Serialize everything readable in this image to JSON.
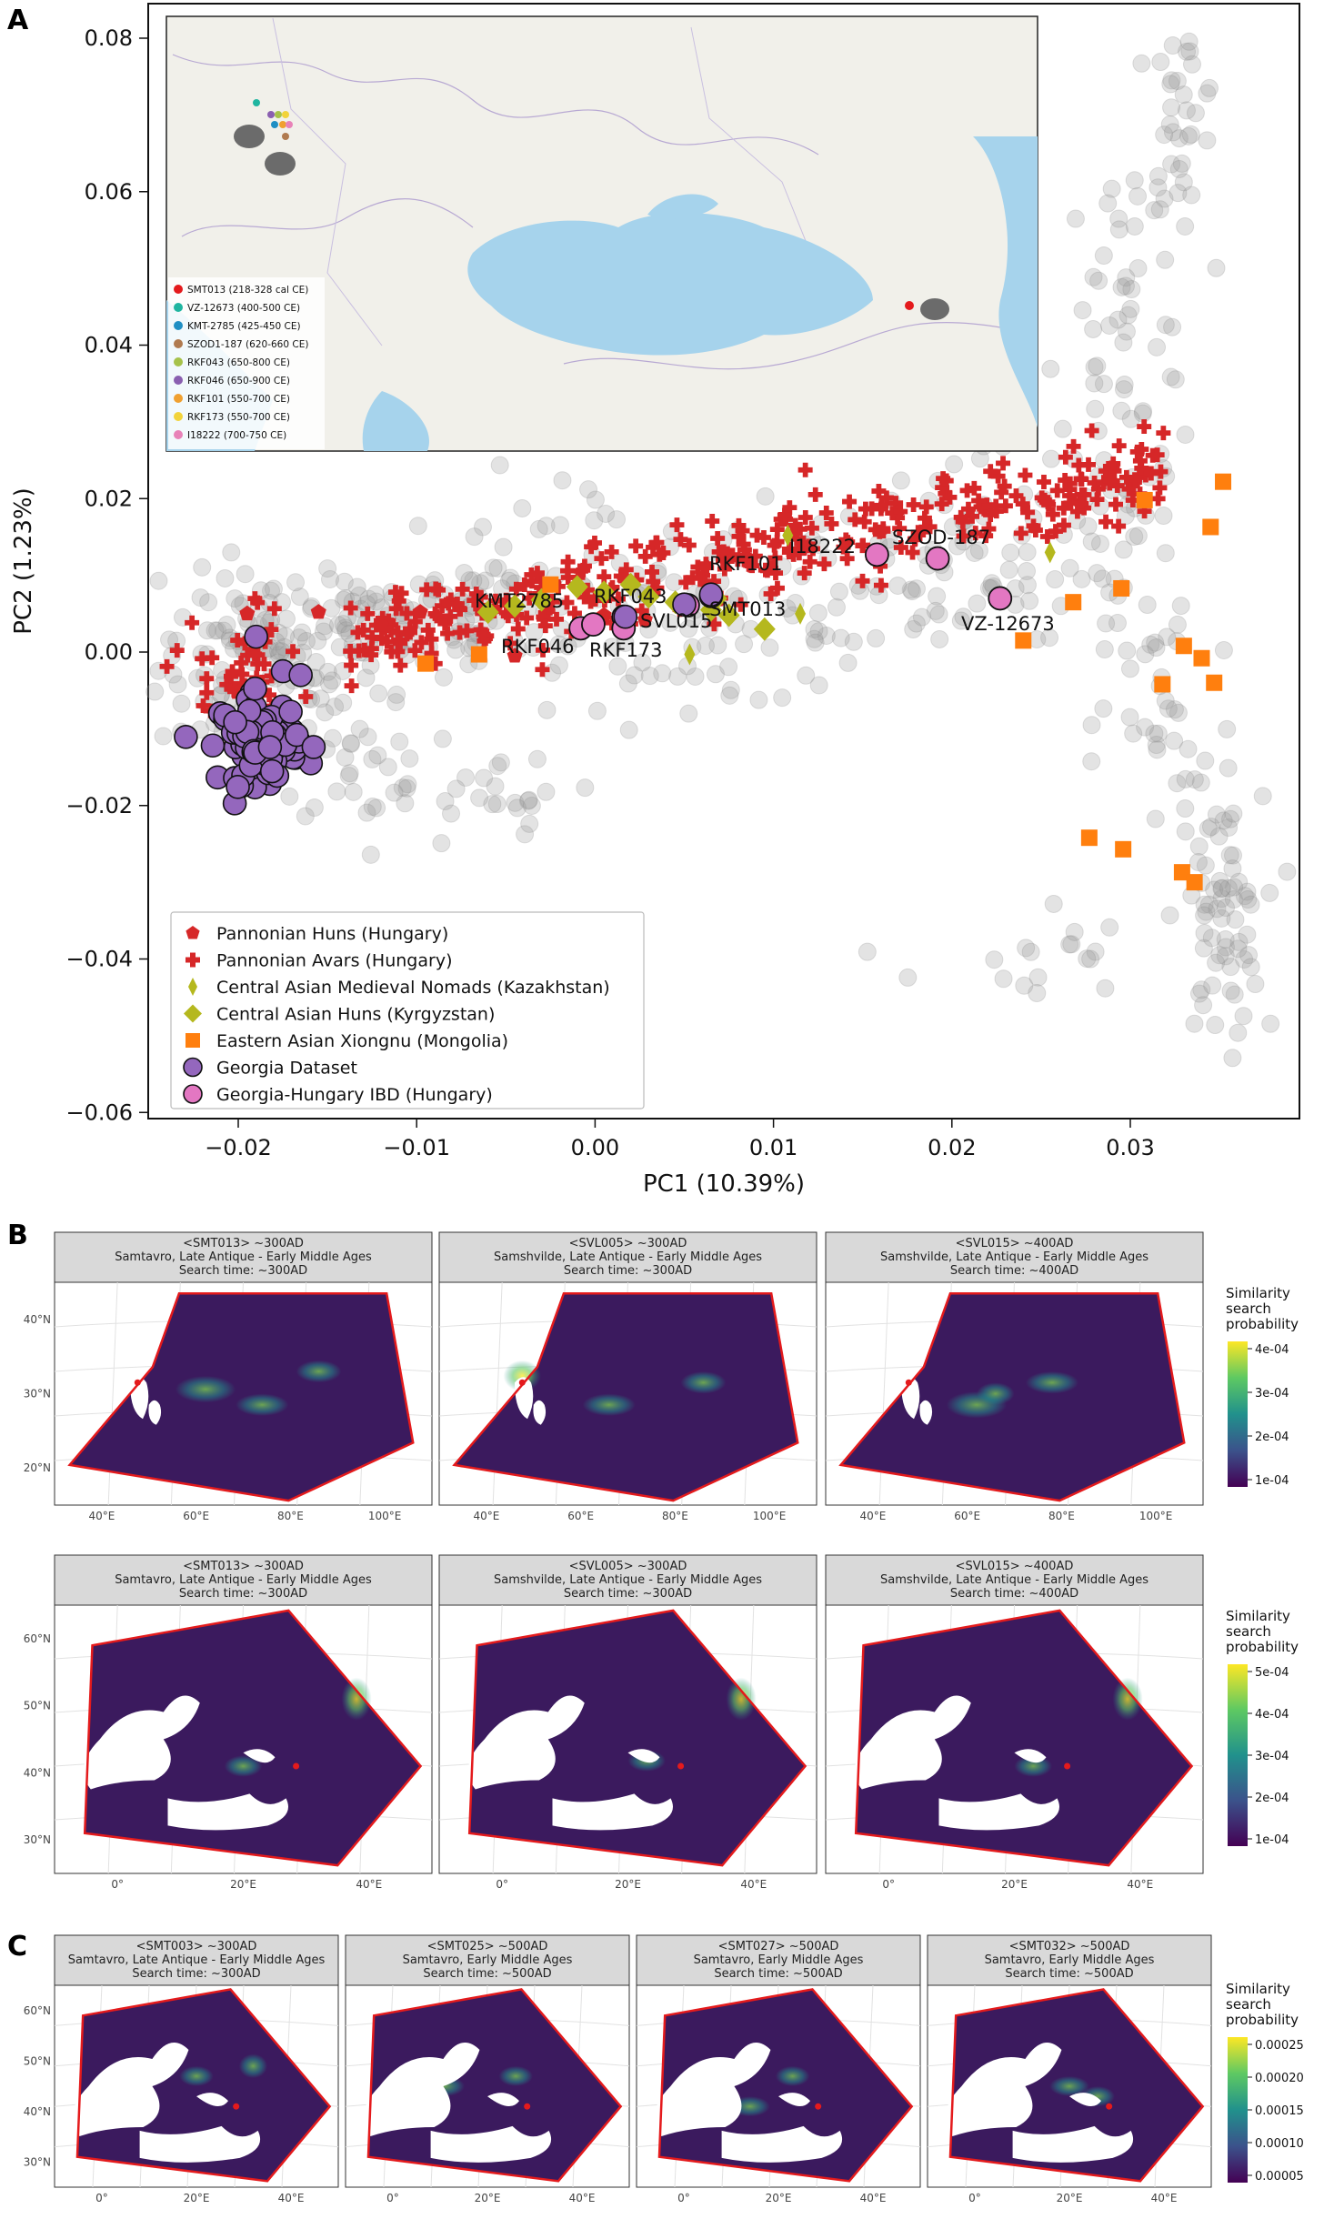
{
  "figure": {
    "panel_labels": [
      "A",
      "B",
      "C"
    ]
  },
  "chart_data": [
    {
      "type": "scatter",
      "panel": "A",
      "xlabel": "PC1 (10.39%)",
      "ylabel": "PC2 (1.23%)",
      "xlim": [
        -0.025,
        0.038
      ],
      "ylim": [
        -0.061,
        0.085
      ],
      "xticks": [
        -0.02,
        -0.01,
        0.0,
        0.01,
        0.02,
        0.03
      ],
      "xtick_labels": [
        "−0.02",
        "−0.01",
        "0.00",
        "0.01",
        "0.02",
        "0.03"
      ],
      "yticks": [
        -0.06,
        -0.04,
        -0.02,
        0.0,
        0.02,
        0.04,
        0.06,
        0.08
      ],
      "ytick_labels": [
        "−0.06",
        "−0.04",
        "−0.02",
        "0.00",
        "0.02",
        "0.04",
        "0.06",
        "0.08"
      ],
      "grid": false,
      "legend_position": "bottom-left",
      "legend": [
        {
          "label": "Pannonian Huns (Hungary)",
          "marker": "pentagon",
          "color": "#d62728"
        },
        {
          "label": "Pannonian Avars (Hungary)",
          "marker": "plus",
          "color": "#d62728"
        },
        {
          "label": "Central Asian Medieval Nomads (Kazakhstan)",
          "marker": "thin-diamond",
          "color": "#b5b81e"
        },
        {
          "label": "Central Asian Huns (Kyrgyzstan)",
          "marker": "diamond",
          "color": "#b5b81e"
        },
        {
          "label": "Eastern Asian Xiongnu (Mongolia)",
          "marker": "square",
          "color": "#ff7f0e"
        },
        {
          "label": "Georgia Dataset",
          "marker": "circle",
          "color": "#9467bd"
        },
        {
          "label": "Georgia-Hungary IBD (Hungary)",
          "marker": "circle",
          "color": "#e377c2"
        }
      ],
      "series": [
        {
          "name": "Eastern Asian Xiongnu (Mongolia)",
          "points": [
            [
              -0.0095,
              -0.0015
            ],
            [
              -0.0065,
              -0.0003
            ],
            [
              -0.0025,
              0.0088
            ],
            [
              0.024,
              0.0015
            ],
            [
              0.0268,
              0.0065
            ],
            [
              0.0295,
              0.0083
            ],
            [
              0.0308,
              0.0198
            ],
            [
              0.0345,
              0.0163
            ],
            [
              0.0352,
              0.0222
            ],
            [
              0.033,
              0.0008
            ],
            [
              0.034,
              -0.0008
            ],
            [
              0.0347,
              -0.004
            ],
            [
              0.0318,
              -0.0042
            ],
            [
              0.0277,
              -0.0242
            ],
            [
              0.0296,
              -0.0257
            ],
            [
              0.0329,
              -0.0287
            ],
            [
              0.0336,
              -0.03
            ]
          ]
        },
        {
          "name": "Georgia-Hungary IBD (Hungary)",
          "points": [
            [
              -0.0008,
              0.0031
            ],
            [
              -0.0001,
              0.0036
            ],
            [
              0.0016,
              0.0046
            ],
            [
              0.0016,
              0.0031
            ],
            [
              0.0052,
              0.0061
            ],
            [
              0.0065,
              0.0073
            ],
            [
              0.0158,
              0.0127
            ],
            [
              0.0192,
              0.0122
            ],
            [
              0.0227,
              0.007
            ]
          ]
        }
      ],
      "point_labels": [
        "KMT2785",
        "RKF043",
        "RKF101",
        "SVL015",
        "SMT013",
        "RKF046",
        "RKF173",
        "I18222",
        "SZOD-187",
        "VZ-12673"
      ],
      "inset_map_legend": [
        {
          "label": "SMT013 (218-328 cal CE)",
          "color": "#e41a1c"
        },
        {
          "label": "VZ-12673 (400-500 CE)",
          "color": "#1fb5a0"
        },
        {
          "label": "KMT-2785 (425-450 CE)",
          "color": "#1f8fc4"
        },
        {
          "label": "SZOD1-187 (620-660 CE)",
          "color": "#b07a4f"
        },
        {
          "label": "RKF043 (650-800 CE)",
          "color": "#a6c24a"
        },
        {
          "label": "RKF046 (650-900 CE)",
          "color": "#8a5fb0"
        },
        {
          "label": "RKF101 (550-700 CE)",
          "color": "#f0a030"
        },
        {
          "label": "RKF173 (550-700 CE)",
          "color": "#f2d33a"
        },
        {
          "label": "I18222 (700-750 CE)",
          "color": "#e882b8"
        }
      ]
    },
    {
      "type": "heatmap",
      "panel": "B",
      "rows": [
        {
          "legend_title": [
            "Similarity",
            "search",
            "probability"
          ],
          "legend_ticks": [
            "4e-04",
            "3e-04",
            "2e-04",
            "1e-04"
          ],
          "lat_ticks": [
            "40°N",
            "30°N",
            "20°N"
          ],
          "lon_ticks": [
            "40°E",
            "60°E",
            "80°E",
            "100°E"
          ],
          "facets": [
            {
              "strip": [
                "<SMT013> ~300AD",
                "Samtavro, Late Antique - Early Middle Ages",
                "Search time: ~300AD"
              ]
            },
            {
              "strip": [
                "<SVL005> ~300AD",
                "Samshvilde, Late Antique - Early Middle Ages",
                "Search time: ~300AD"
              ]
            },
            {
              "strip": [
                "<SVL015> ~400AD",
                "Samshvilde, Late Antique - Early Middle Ages",
                "Search time: ~400AD"
              ]
            }
          ]
        },
        {
          "legend_title": [
            "Similarity",
            "search",
            "probability"
          ],
          "legend_ticks": [
            "5e-04",
            "4e-04",
            "3e-04",
            "2e-04",
            "1e-04"
          ],
          "lat_ticks": [
            "60°N",
            "50°N",
            "40°N",
            "30°N"
          ],
          "lon_ticks": [
            "0°",
            "20°E",
            "40°E"
          ],
          "facets": [
            {
              "strip": [
                "<SMT013> ~300AD",
                "Samtavro, Late Antique - Early Middle Ages",
                "Search time: ~300AD"
              ]
            },
            {
              "strip": [
                "<SVL005> ~300AD",
                "Samshvilde, Late Antique - Early Middle Ages",
                "Search time: ~300AD"
              ]
            },
            {
              "strip": [
                "<SVL015> ~400AD",
                "Samshvilde, Late Antique - Early Middle Ages",
                "Search time: ~400AD"
              ]
            }
          ]
        }
      ]
    },
    {
      "type": "heatmap",
      "panel": "C",
      "legend_title": [
        "Similarity",
        "search",
        "probability"
      ],
      "legend_ticks": [
        "0.00025",
        "0.00020",
        "0.00015",
        "0.00010",
        "0.00005"
      ],
      "lat_ticks": [
        "60°N",
        "50°N",
        "40°N",
        "30°N"
      ],
      "lon_ticks": [
        "0°",
        "20°E",
        "40°E"
      ],
      "facets": [
        {
          "strip": [
            "<SMT003> ~300AD",
            "Samtavro, Late Antique - Early Middle Ages",
            "Search time: ~300AD"
          ]
        },
        {
          "strip": [
            "<SMT025> ~500AD",
            "Samtavro, Early Middle Ages",
            "Search time: ~500AD"
          ]
        },
        {
          "strip": [
            "<SMT027> ~500AD",
            "Samtavro, Early Middle Ages",
            "Search time: ~500AD"
          ]
        },
        {
          "strip": [
            "<SMT032> ~500AD",
            "Samtavro, Early Middle Ages",
            "Search time: ~500AD"
          ]
        }
      ]
    }
  ]
}
